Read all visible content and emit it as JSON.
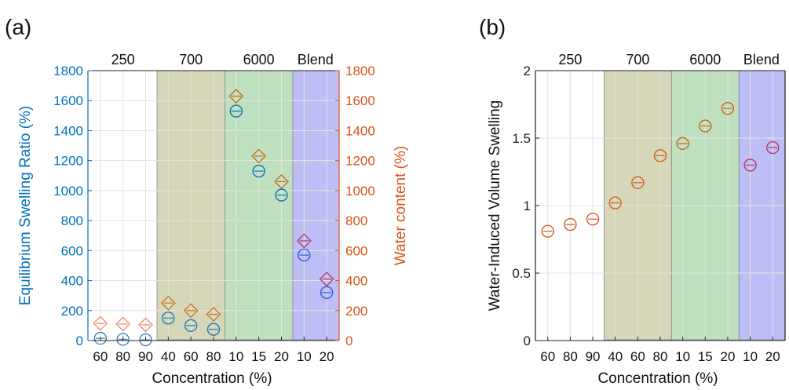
{
  "colors": {
    "band_700": "#c8c8a0",
    "band_6000": "#a9d6a9",
    "band_blend": "#a8a8f4",
    "esr": "#0072bd",
    "water": "#d95319",
    "axis": "#222222",
    "grid": "#e4e4e4"
  },
  "chart_data": [
    {
      "panel": "(a)",
      "type": "scatter",
      "categories": [
        "60",
        "80",
        "90",
        "40",
        "60",
        "80",
        "10",
        "15",
        "20",
        "10",
        "20"
      ],
      "group_labels": [
        "250",
        "700",
        "6000",
        "Blend"
      ],
      "xlabel": "Concentration (%)",
      "ylabel": "Equilibrium Swelling Ratio (%)",
      "y2label": "Water content (%)",
      "ylim": [
        0,
        1800
      ],
      "y2lim": [
        0,
        1800
      ],
      "yticks": [
        "0",
        "200",
        "400",
        "600",
        "800",
        "1000",
        "1200",
        "1400",
        "1600",
        "1800"
      ],
      "y2ticks": [
        "0",
        "200",
        "400",
        "600",
        "800",
        "1000",
        "1200",
        "1400",
        "1600",
        "1800"
      ],
      "grid": true,
      "series": [
        {
          "marker": "circle",
          "axis": "left",
          "values": [
            15,
            8,
            5,
            150,
            100,
            75,
            1530,
            1130,
            970,
            570,
            320
          ]
        },
        {
          "marker": "diamond",
          "axis": "right",
          "values": [
            115,
            110,
            105,
            250,
            200,
            175,
            1630,
            1230,
            1060,
            665,
            410
          ]
        }
      ]
    },
    {
      "panel": "(b)",
      "type": "scatter",
      "categories": [
        "60",
        "80",
        "90",
        "40",
        "60",
        "80",
        "10",
        "15",
        "20",
        "10",
        "20"
      ],
      "group_labels": [
        "250",
        "700",
        "6000",
        "Blend"
      ],
      "xlabel": "Concentration (%)",
      "ylabel": "Water-Induced Volume Swelling",
      "ylim": [
        0,
        2
      ],
      "yticks": [
        "0",
        "0.5",
        "1",
        "1.5",
        "2"
      ],
      "grid": true,
      "series": [
        {
          "marker": "circle",
          "values": [
            0.81,
            0.86,
            0.9,
            1.02,
            1.17,
            1.37,
            1.46,
            1.59,
            1.72,
            1.3,
            1.43
          ]
        }
      ]
    }
  ]
}
